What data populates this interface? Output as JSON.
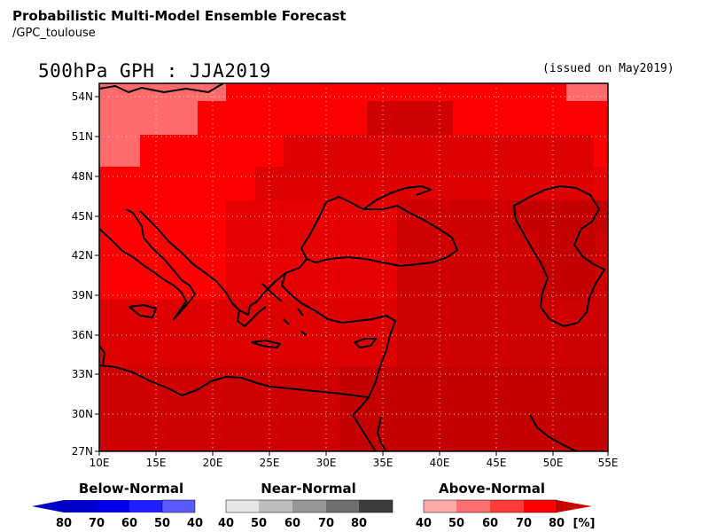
{
  "header": {
    "title": "Probabilistic Multi-Model Ensemble Forecast",
    "source": "/GPC_toulouse",
    "map_title": "500hPa GPH : JJA2019",
    "issued": "(issued on May2019)"
  },
  "map": {
    "lon_range": [
      10,
      55
    ],
    "lat_range": [
      27,
      55
    ],
    "lon_ticks": [
      "10E",
      "15E",
      "20E",
      "25E",
      "30E",
      "35E",
      "40E",
      "45E",
      "50E",
      "55E"
    ],
    "lat_ticks": [
      "54N",
      "51N",
      "48N",
      "45N",
      "42N",
      "39N",
      "36N",
      "33N",
      "30N",
      "27N"
    ],
    "grid": "dotted",
    "field_colors": {
      "light": "#ff6b6b",
      "bright": "#ff0000",
      "mid": "#e60000",
      "darkmid": "#dc0000",
      "dark": "#cf0000",
      "darker": "#c40000"
    },
    "coastline_color": "#000000"
  },
  "legend": {
    "below": {
      "title": "Below-Normal",
      "ticks": [
        "80",
        "70",
        "60",
        "50",
        "40"
      ],
      "colors": [
        "#0000c8",
        "#0000e6",
        "#1e1eff",
        "#5a5aff",
        "#a0a0ff"
      ]
    },
    "near": {
      "title": "Near-Normal",
      "ticks": [
        "40",
        "50",
        "60",
        "70",
        "80"
      ],
      "colors": [
        "#e6e6e6",
        "#bebebe",
        "#969696",
        "#6e6e6e",
        "#3c3c3c"
      ]
    },
    "above": {
      "title": "Above-Normal",
      "ticks": [
        "40",
        "50",
        "60",
        "70",
        "80"
      ],
      "colors": [
        "#ffaaaa",
        "#ff6e6e",
        "#ff3c3c",
        "#ff0000",
        "#c80000"
      ],
      "unit": "[%]"
    }
  }
}
